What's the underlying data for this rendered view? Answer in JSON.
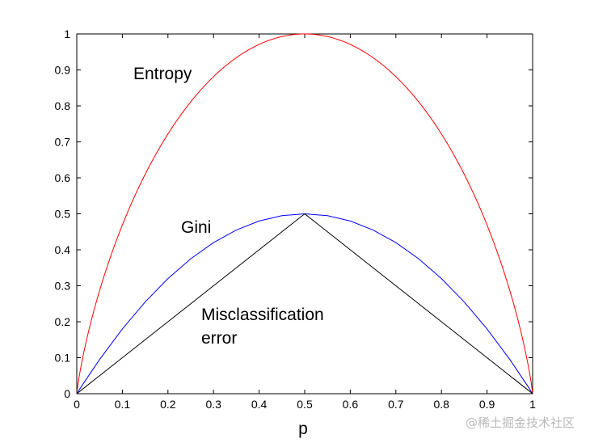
{
  "chart_data": {
    "type": "line",
    "title": "",
    "xlabel": "p",
    "ylabel": "",
    "xlim": [
      0,
      1
    ],
    "ylim": [
      0,
      1
    ],
    "grid": false,
    "xticks": [
      "0",
      "0.1",
      "0.2",
      "0.3",
      "0.4",
      "0.5",
      "0.6",
      "0.7",
      "0.8",
      "0.9",
      "1"
    ],
    "yticks": [
      "0",
      "0.1",
      "0.2",
      "0.3",
      "0.4",
      "0.5",
      "0.6",
      "0.7",
      "0.8",
      "0.9",
      "1"
    ],
    "x": [
      0,
      0.01,
      0.05,
      0.1,
      0.15,
      0.2,
      0.25,
      0.3,
      0.35,
      0.4,
      0.45,
      0.5,
      0.55,
      0.6,
      0.65,
      0.7,
      0.75,
      0.8,
      0.85,
      0.9,
      0.95,
      0.99,
      1
    ],
    "series": [
      {
        "name": "Entropy",
        "color": "#ff0000",
        "values": [
          0,
          0.0808,
          0.2864,
          0.469,
          0.6098,
          0.7219,
          0.8113,
          0.8813,
          0.9341,
          0.971,
          0.9928,
          1,
          0.9928,
          0.971,
          0.9341,
          0.8813,
          0.8113,
          0.7219,
          0.6098,
          0.469,
          0.2864,
          0.0808,
          0
        ]
      },
      {
        "name": "Gini",
        "color": "#0000ff",
        "values": [
          0,
          0.0198,
          0.095,
          0.18,
          0.255,
          0.32,
          0.375,
          0.42,
          0.455,
          0.48,
          0.495,
          0.5,
          0.495,
          0.48,
          0.455,
          0.42,
          0.375,
          0.32,
          0.255,
          0.18,
          0.095,
          0.0198,
          0
        ]
      },
      {
        "name": "Misclassification error",
        "color": "#000000",
        "values": [
          0,
          0.01,
          0.05,
          0.1,
          0.15,
          0.2,
          0.25,
          0.3,
          0.35,
          0.4,
          0.45,
          0.5,
          0.45,
          0.4,
          0.35,
          0.3,
          0.25,
          0.2,
          0.15,
          0.1,
          0.05,
          0.01,
          0
        ]
      }
    ],
    "annotations": {
      "entropy": "Entropy",
      "gini": "Gini",
      "misclass_line1": "Misclassification",
      "misclass_line2": "error"
    }
  },
  "watermark": "@稀土掘金技术社区"
}
